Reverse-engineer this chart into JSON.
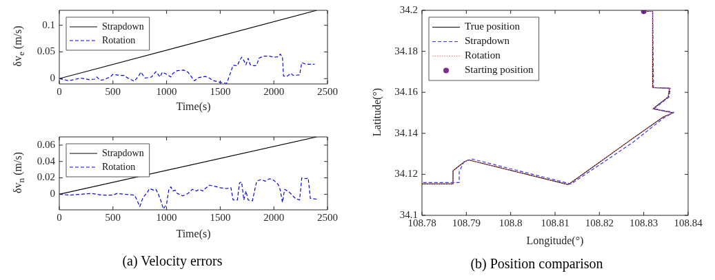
{
  "chart_data": [
    {
      "type": "line",
      "xlabel": "Time(s)",
      "ylabel": "δv$_{e}$ (m/s)",
      "xlim": [
        0,
        2500
      ],
      "xticks": [
        0,
        500,
        1000,
        1500,
        2000,
        2500
      ],
      "ylim": [
        -0.01,
        0.128
      ],
      "yticks": [
        0,
        0.05,
        0.1
      ],
      "grid": false,
      "legend": "top left",
      "series": [
        {
          "name": "Strapdown",
          "color": "#000000",
          "line_style": "solid",
          "x": [
            0,
            2400
          ],
          "values": [
            0,
            0.128
          ]
        },
        {
          "name": "Rotation",
          "color": "#0000ff",
          "line_style": "dashed",
          "x": [
            0,
            90,
            200,
            280,
            330,
            350,
            380,
            420,
            480,
            500,
            560,
            600,
            640,
            700,
            740,
            760,
            800,
            860,
            900,
            940,
            960,
            1000,
            1040,
            1060,
            1100,
            1160,
            1200,
            1240,
            1260,
            1300,
            1360,
            1400,
            1420,
            1440,
            1500,
            1560,
            1580,
            1620,
            1660,
            1680,
            1700,
            1720,
            1740,
            1760,
            1780,
            1820,
            1840,
            1860,
            1900,
            1960,
            2000,
            2040,
            2060,
            2080,
            2090,
            2120,
            2160,
            2180,
            2240,
            2260,
            2300,
            2380
          ],
          "values": [
            0,
            -0.004,
            0.001,
            -0.002,
            -0.001,
            0.003,
            -0.003,
            -0.002,
            0.004,
            0.008,
            0.006,
            0.006,
            0.001,
            -0.005,
            0.005,
            0.012,
            0.001,
            0.003,
            0.013,
            0.003,
            0.012,
            0.008,
            0.003,
            0.01,
            0.015,
            0.016,
            0.012,
            0.001,
            -0.004,
            0.002,
            0.004,
            0.001,
            -0.002,
            -0.004,
            -0.007,
            -0.009,
            0.002,
            0.025,
            0.024,
            0.034,
            0.04,
            0.034,
            0.026,
            0.038,
            0.026,
            0.024,
            0.025,
            0.038,
            0.042,
            0.042,
            0.04,
            0.041,
            0.046,
            0.04,
            0.005,
            0.004,
            0.01,
            0.006,
            0.007,
            0.03,
            0.027,
            0.027
          ]
        }
      ]
    },
    {
      "type": "line",
      "xlabel": "Time(s)",
      "ylabel": "δv$_{n}$ (m/s)",
      "xlim": [
        0,
        2500
      ],
      "xticks": [
        0,
        500,
        1000,
        1500,
        2000,
        2500
      ],
      "ylim": [
        -0.019,
        0.07
      ],
      "yticks": [
        0,
        0.02,
        0.04,
        0.06
      ],
      "grid": false,
      "legend": "top left",
      "annotations": [
        "(a) Velocity errors"
      ],
      "series": [
        {
          "name": "Strapdown",
          "color": "#000000",
          "line_style": "solid",
          "x": [
            0,
            2400
          ],
          "values": [
            0,
            0.07
          ]
        },
        {
          "name": "Rotation",
          "color": "#0000ff",
          "line_style": "dashed",
          "x": [
            0,
            100,
            200,
            300,
            400,
            500,
            540,
            600,
            700,
            720,
            750,
            780,
            820,
            840,
            880,
            900,
            920,
            950,
            970,
            1000,
            1020,
            1040,
            1060,
            1080,
            1100,
            1150,
            1200,
            1240,
            1280,
            1300,
            1340,
            1360,
            1400,
            1440,
            1500,
            1560,
            1600,
            1620,
            1660,
            1680,
            1700,
            1720,
            1740,
            1760,
            1800,
            1840,
            1880,
            1920,
            1960,
            2000,
            2040,
            2060,
            2080,
            2100,
            2140,
            2200,
            2240,
            2260,
            2300,
            2320,
            2340,
            2400
          ],
          "values": [
            0,
            -0.001,
            0,
            0.001,
            -0.001,
            -0.001,
            0.001,
            0,
            -0.001,
            -0.006,
            -0.015,
            -0.004,
            0.002,
            0.007,
            0.005,
            0.006,
            0.001,
            -0.009,
            -0.018,
            -0.012,
            0.005,
            0.009,
            0.004,
            0.005,
            0.001,
            -0.002,
            0.001,
            0.006,
            0.004,
            0.006,
            0.004,
            0.007,
            0.011,
            0.01,
            0.008,
            0.007,
            0.008,
            -0.007,
            -0.007,
            0.014,
            0.015,
            -0.007,
            0.004,
            -0.007,
            -0.008,
            0.016,
            0.018,
            0.016,
            0.019,
            0.017,
            0.012,
            0.005,
            -0.01,
            0.006,
            0.003,
            -0.005,
            -0.007,
            0.02,
            0.019,
            0.02,
            -0.005,
            -0.006
          ]
        }
      ]
    },
    {
      "type": "line",
      "xlabel": "Longitude(°)",
      "ylabel": "Latitude(°)",
      "xlim": [
        108.78,
        108.84
      ],
      "xticks": [
        108.78,
        108.79,
        108.8,
        108.81,
        108.82,
        108.83,
        108.84
      ],
      "ylim": [
        34.1,
        34.2
      ],
      "yticks": [
        34.1,
        34.12,
        34.14,
        34.16,
        34.18,
        34.2
      ],
      "grid": false,
      "legend": "top left",
      "annotations": [
        "(b) Position comparison"
      ],
      "series": [
        {
          "name": "True position",
          "color": "#000000",
          "line_style": "solid",
          "x": [
            108.83,
            108.832,
            108.832,
            108.8358,
            108.8355,
            108.8321,
            108.8366,
            108.8344,
            108.827,
            108.813,
            108.7905,
            108.7895,
            108.787,
            108.787,
            108.78
          ],
          "values": [
            34.1995,
            34.1995,
            34.1623,
            34.162,
            34.1577,
            34.152,
            34.15,
            34.148,
            34.1367,
            34.115,
            34.127,
            34.126,
            34.1217,
            34.1153,
            34.1153
          ]
        },
        {
          "name": "Strapdown",
          "color": "#3333ff",
          "line_style": "dashed",
          "x": [
            108.83,
            108.832,
            108.8322,
            108.836,
            108.8357,
            108.8323,
            108.8368,
            108.8346,
            108.8275,
            108.8136,
            108.7912,
            108.7895,
            108.7884,
            108.7884,
            108.78
          ],
          "values": [
            34.1995,
            34.1995,
            34.1623,
            34.162,
            34.1577,
            34.152,
            34.1502,
            34.1477,
            34.1355,
            34.1153,
            34.1275,
            34.1262,
            34.1213,
            34.116,
            34.116
          ]
        },
        {
          "name": "Rotation",
          "color": "#ff6666",
          "line_style": "dotted",
          "x": [
            108.83,
            108.832,
            108.832,
            108.8358,
            108.8355,
            108.8321,
            108.8366,
            108.8344,
            108.827,
            108.813,
            108.7905,
            108.7895,
            108.787,
            108.787,
            108.78
          ],
          "values": [
            34.1995,
            34.1995,
            34.1623,
            34.162,
            34.1577,
            34.152,
            34.15,
            34.148,
            34.1367,
            34.115,
            34.127,
            34.126,
            34.1217,
            34.1153,
            34.1153
          ]
        },
        {
          "name": "Starting position",
          "type": "scatter",
          "marker": "circle",
          "color": "#7b2d8e",
          "x": [
            108.83
          ],
          "values": [
            34.1995
          ]
        }
      ]
    }
  ]
}
